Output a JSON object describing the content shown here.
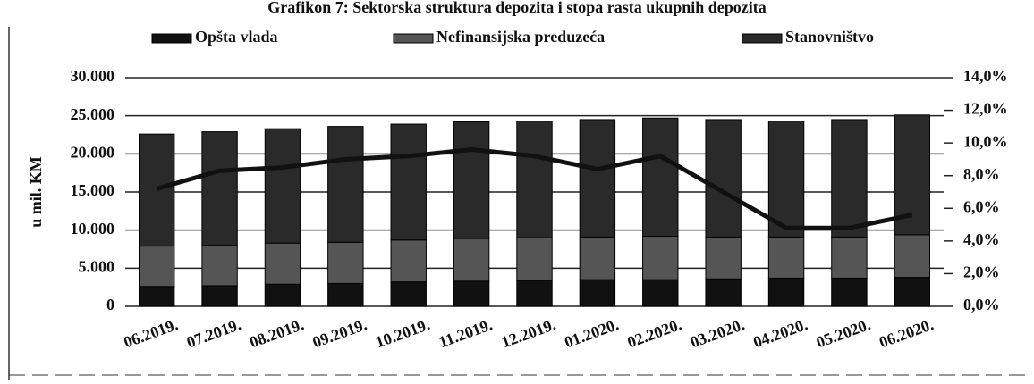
{
  "chart_data": {
    "type": "bar",
    "title": "Grafikon 7: Sektorska struktura depozita i stopa rasta ukupnih depozita",
    "ylabel": "u mil. KM",
    "categories": [
      "06.2019.",
      "07.2019.",
      "08.2019.",
      "09.2019.",
      "10.2019.",
      "11.2019.",
      "12.2019.",
      "01.2020.",
      "02.2020.",
      "03.2020.",
      "04.2020.",
      "05.2020.",
      "06.2020."
    ],
    "stacked": true,
    "series": [
      {
        "name": "Opšta vlada",
        "color": "#111111",
        "values": [
          2600,
          2700,
          2900,
          3000,
          3200,
          3300,
          3400,
          3500,
          3500,
          3600,
          3700,
          3700,
          3800
        ]
      },
      {
        "name": "Nefinansijska preduzeća",
        "color": "#555555",
        "values": [
          5300,
          5300,
          5400,
          5400,
          5500,
          5600,
          5600,
          5600,
          5700,
          5500,
          5400,
          5400,
          5600
        ]
      },
      {
        "name": "Stanovništvo",
        "color": "#2a2a2a",
        "values": [
          14700,
          14900,
          15000,
          15200,
          15200,
          15300,
          15300,
          15400,
          15500,
          15400,
          15200,
          15400,
          15700
        ]
      }
    ],
    "line": {
      "color": "#111111",
      "axis": "y2",
      "values": [
        7.2,
        8.3,
        8.5,
        9.0,
        9.2,
        9.6,
        9.2,
        8.4,
        9.2,
        7.0,
        4.8,
        4.8,
        5.6
      ]
    },
    "ylim": [
      0,
      30000
    ],
    "yticks": [
      0,
      {
        "value": 5000,
        "label": "5.000"
      },
      {
        "value": 10000,
        "label": "10.000"
      },
      {
        "value": 15000,
        "label": "15.000"
      },
      {
        "value": 20000,
        "label": "20.000"
      },
      {
        "value": 25000,
        "label": "25.000"
      },
      {
        "value": 30000,
        "label": "30.000"
      }
    ],
    "y2lim": [
      0,
      14
    ],
    "y2ticks": [
      {
        "value": 0,
        "label": "0,0%"
      },
      {
        "value": 2,
        "label": "2,0%"
      },
      {
        "value": 4,
        "label": "4,0%"
      },
      {
        "value": 6,
        "label": "6,0%"
      },
      {
        "value": 8,
        "label": "8,0%"
      },
      {
        "value": 10,
        "label": "10,0%"
      },
      {
        "value": 12,
        "label": "12,0%"
      },
      {
        "value": 14,
        "label": "14,0%"
      }
    ],
    "grid": true
  }
}
